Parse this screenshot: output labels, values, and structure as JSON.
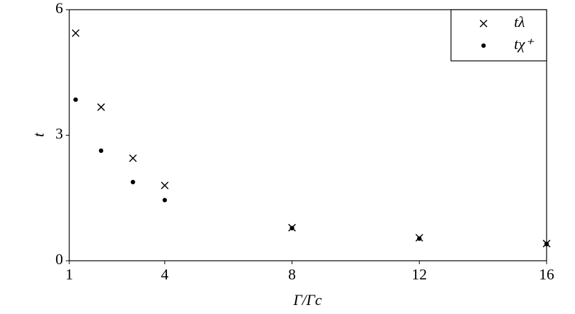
{
  "chart_data": {
    "type": "scatter",
    "x_label": "Γ/Γc",
    "y_label": "t",
    "xlim": [
      1,
      16
    ],
    "ylim": [
      0,
      6
    ],
    "xticks": [
      1,
      4,
      8,
      12,
      16
    ],
    "yticks": [
      0,
      3,
      6
    ],
    "legend": "upper right",
    "series": [
      {
        "name": "tλ",
        "color": "#000000",
        "marker": "x",
        "x": [
          1.2,
          2.0,
          3.0,
          4.0,
          8.0,
          12.0,
          16.0
        ],
        "values": [
          5.44,
          3.67,
          2.45,
          1.8,
          0.79,
          0.55,
          0.41
        ]
      },
      {
        "name": "tχ⁺",
        "color": "#000000",
        "marker": "dot",
        "x": [
          1.2,
          2.0,
          3.0,
          4.0,
          8.0,
          12.0,
          16.0
        ],
        "values": [
          3.85,
          2.63,
          1.88,
          1.45,
          0.78,
          0.53,
          0.4
        ]
      }
    ]
  }
}
